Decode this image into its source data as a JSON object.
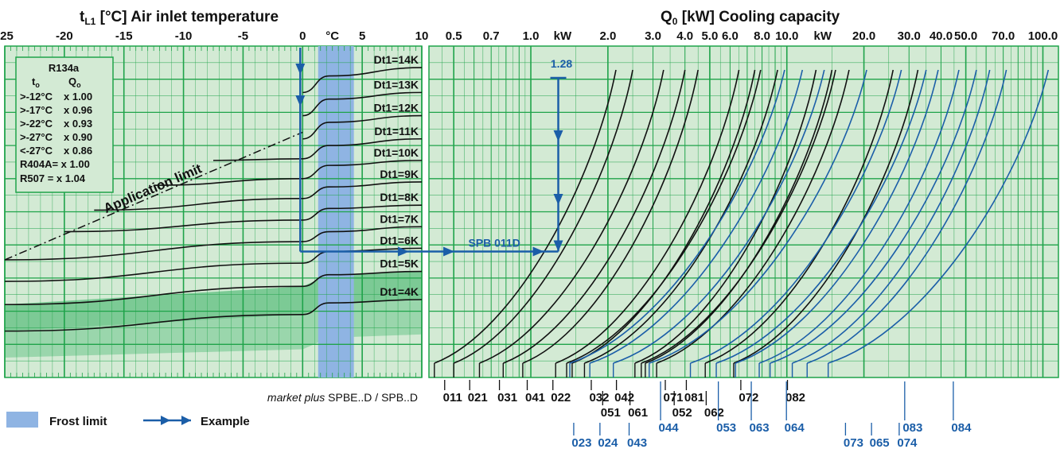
{
  "chart_data": [
    {
      "type": "line",
      "title": "Air inlet temperature",
      "title_prefix": "t",
      "title_sub": "L1",
      "title_unit": "[°C]",
      "xlim": [
        -25,
        10
      ],
      "x_ticks": [
        -25,
        -20,
        -15,
        -10,
        -5,
        0,
        5,
        10
      ],
      "x_unit_label": "°C",
      "frost_limit_range": [
        1.3,
        4.3
      ],
      "series": [
        {
          "name": "Dt1=14K",
          "x": [
            0,
            2.2,
            10
          ],
          "y": [
            0.86,
            0.91,
            0.935
          ],
          "start_x": 0
        },
        {
          "name": "Dt1=13K",
          "x": [
            0,
            2.2,
            10
          ],
          "y": [
            0.79,
            0.84,
            0.86
          ],
          "start_x": 0
        },
        {
          "name": "Dt1=12K",
          "x": [
            0,
            2.2,
            10
          ],
          "y": [
            0.72,
            0.77,
            0.79
          ],
          "start_x": 0
        },
        {
          "name": "Dt1=11K",
          "x": [
            -7.5,
            0,
            2.2,
            10
          ],
          "y": [
            0.655,
            0.66,
            0.7,
            0.72
          ],
          "start_x": -7.5
        },
        {
          "name": "Dt1=10K",
          "x": [
            -12.5,
            0,
            2.2,
            10
          ],
          "y": [
            0.58,
            0.6,
            0.64,
            0.655
          ],
          "start_x": -12.5
        },
        {
          "name": "Dt1=9K",
          "x": [
            -17.5,
            0,
            2.2,
            10
          ],
          "y": [
            0.505,
            0.54,
            0.575,
            0.59
          ],
          "start_x": -17.5
        },
        {
          "name": "Dt1=8K",
          "x": [
            -20,
            0,
            2.2,
            10
          ],
          "y": [
            0.44,
            0.475,
            0.51,
            0.52
          ],
          "start_x": -20
        },
        {
          "name": "Dt1=7K",
          "x": [
            -25,
            0,
            2.2,
            10
          ],
          "y": [
            0.355,
            0.41,
            0.44,
            0.455
          ],
          "start_x": -25
        },
        {
          "name": "Dt1=6K",
          "x": [
            -25,
            0,
            2.2,
            10
          ],
          "y": [
            0.29,
            0.345,
            0.38,
            0.39
          ],
          "start_x": -25
        },
        {
          "name": "Dt1=5K",
          "x": [
            -25,
            0,
            2.2,
            10
          ],
          "y": [
            0.22,
            0.275,
            0.31,
            0.32
          ],
          "start_x": -25
        },
        {
          "name": "Dt1=4K",
          "x": [
            -25,
            0,
            2.2,
            10
          ],
          "y": [
            0.14,
            0.19,
            0.225,
            0.235
          ],
          "start_x": -25
        }
      ],
      "application_limit": {
        "label": "Application limit",
        "x": [
          -25,
          0
        ],
        "y": [
          0.355,
          0.74
        ]
      },
      "table": {
        "refrigerant": "R134a",
        "headers": [
          "t",
          "Q"
        ],
        "header_sub": "o",
        "rows": [
          [
            ">-12°C",
            "x 1.00"
          ],
          [
            ">-17°C",
            "x 0.96"
          ],
          [
            ">-22°C",
            "x 0.93"
          ],
          [
            ">-27°C",
            "x 0.90"
          ],
          [
            "<-27°C",
            "x 0.86"
          ]
        ],
        "extra_rows": [
          "R404A= x 1.00",
          "R507  = x 1.04"
        ]
      }
    },
    {
      "type": "line",
      "title": "Cooling capacity",
      "title_prefix": "Q",
      "title_sub": "0",
      "title_unit": "[kW]",
      "x_scale": "log",
      "xlim": [
        0.4,
        115
      ],
      "x_ticks": [
        0.5,
        0.7,
        1.0,
        2.0,
        3.0,
        4.0,
        5.0,
        6.0,
        8.0,
        10.0,
        20.0,
        30.0,
        40.0,
        50.0,
        70.0,
        100.0
      ],
      "x_tick_labels": [
        "0.5",
        "0.7",
        "1.0",
        "2.0",
        "3.0",
        "4.0",
        "5.0",
        "6.0",
        "8.0",
        "10.0",
        "20.0",
        "30.0",
        "40.0",
        "50.0",
        "70.0",
        "100.0"
      ],
      "unit_labels": [
        {
          "text": "kW",
          "x": 1.33
        },
        {
          "text": "kW",
          "x": 13.8
        }
      ],
      "series_black": [
        {
          "name": "011",
          "x0": 0.42,
          "x1": 2.15
        },
        {
          "name": "021",
          "x0": 0.5,
          "x1": 2.5
        },
        {
          "name": "031",
          "x0": 0.63,
          "x1": 3.3
        },
        {
          "name": "041",
          "x0": 0.78,
          "x1": 4.0
        },
        {
          "name": "022",
          "x0": 0.93,
          "x1": 4.5
        },
        {
          "name": "032",
          "x0": 1.25,
          "x1": 6.5
        },
        {
          "name": "042",
          "x0": 1.45,
          "x1": 7.5
        },
        {
          "name": "051",
          "x0": 1.38,
          "x1": 7.9
        },
        {
          "name": "061",
          "x0": 1.62,
          "x1": 9.2
        },
        {
          "name": "071",
          "x0": 2.55,
          "x1": 13.0
        },
        {
          "name": "081",
          "x0": 2.8,
          "x1": 15.0
        },
        {
          "name": "052",
          "x0": 2.7,
          "x1": 15.5
        },
        {
          "name": "062",
          "x0": 3.1,
          "x1": 17.5
        },
        {
          "name": "072",
          "x0": 4.8,
          "x1": 26.0
        },
        {
          "name": "082",
          "x0": 6.2,
          "x1": 32.5
        }
      ],
      "series_blue": [
        {
          "name": "023",
          "x0": 1.42,
          "x1": 9.8
        },
        {
          "name": "024",
          "x0": 1.7,
          "x1": 11.5
        },
        {
          "name": "043",
          "x0": 2.1,
          "x1": 14.0
        },
        {
          "name": "044",
          "x0": 2.9,
          "x1": 20.5
        },
        {
          "name": "053",
          "x0": 4.2,
          "x1": 28.0
        },
        {
          "name": "063",
          "x0": 5.3,
          "x1": 35.0
        },
        {
          "name": "064",
          "x0": 6.3,
          "x1": 39.0
        },
        {
          "name": "073",
          "x0": 7.8,
          "x1": 47.0
        },
        {
          "name": "065",
          "x0": 8.6,
          "x1": 55.0
        },
        {
          "name": "083",
          "x0": 10.5,
          "x1": 62.0
        },
        {
          "name": "074",
          "x0": 12.0,
          "x1": 72.0
        },
        {
          "name": "084",
          "x0": 14.5,
          "x1": 105.0
        }
      ],
      "model_labels": {
        "row1": [
          {
            "text": "011",
            "x": 0.495
          },
          {
            "text": "021",
            "x": 0.62
          },
          {
            "text": "031",
            "x": 0.81
          },
          {
            "text": "041",
            "x": 1.04
          },
          {
            "text": "022",
            "x": 1.31
          },
          {
            "text": "032",
            "x": 1.85
          },
          {
            "text": "042",
            "x": 2.32
          },
          {
            "text": "071",
            "x": 3.6
          },
          {
            "text": "081",
            "x": 4.35
          },
          {
            "text": "072",
            "x": 7.1
          },
          {
            "text": "082",
            "x": 10.8
          }
        ],
        "row2": [
          {
            "text": "051",
            "x": 2.05
          },
          {
            "text": "061",
            "x": 2.62
          },
          {
            "text": "052",
            "x": 3.9
          },
          {
            "text": "062",
            "x": 5.2
          }
        ],
        "row3_blue": [
          {
            "text": "044",
            "x": 3.45
          },
          {
            "text": "053",
            "x": 5.8
          },
          {
            "text": "063",
            "x": 7.8
          },
          {
            "text": "064",
            "x": 10.7
          },
          {
            "text": "083",
            "x": 31.0
          },
          {
            "text": "084",
            "x": 48.0
          }
        ],
        "row4_blue": [
          {
            "text": "023",
            "x": 1.58
          },
          {
            "text": "024",
            "x": 2.0
          },
          {
            "text": "043",
            "x": 2.6
          },
          {
            "text": "073",
            "x": 18.2
          },
          {
            "text": "065",
            "x": 23.0
          },
          {
            "text": "074",
            "x": 29.5
          }
        ]
      },
      "example_curve": {
        "name": "SPB 011D",
        "x": 1.28
      }
    }
  ],
  "example": {
    "start_x": -0.2,
    "line_y": 0.38,
    "capacity_label": "1.28",
    "capacity": 1.28,
    "model_label": "SPB 011D"
  },
  "footer": {
    "series_caption_prefix": "market plus",
    "series_caption_suffix": "SPBE..D / SPB..D",
    "legend_frost": "Frost limit",
    "legend_example": "Example"
  },
  "colors": {
    "panel_bg": "#d3ead4",
    "grid": "#1fa34a",
    "frost": "#8fb4e3",
    "green_band": "#6cc48a",
    "blue": "#1b5ea8",
    "black": "#111111"
  }
}
